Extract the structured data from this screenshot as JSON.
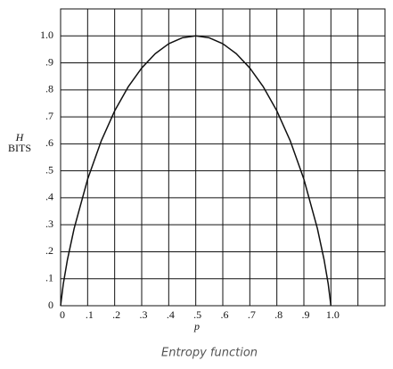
{
  "chart_data": {
    "type": "line",
    "y_label_symbol": "H",
    "y_label_unit": "BITS",
    "x_label": "p",
    "caption": "Entropy function",
    "x": [
      0,
      0.01,
      0.025,
      0.05,
      0.1,
      0.15,
      0.2,
      0.25,
      0.3,
      0.35,
      0.4,
      0.45,
      0.5,
      0.55,
      0.6,
      0.65,
      0.7,
      0.75,
      0.8,
      0.85,
      0.9,
      0.95,
      0.975,
      0.99,
      1
    ],
    "series": [
      {
        "color": "#111111",
        "values": [
          0,
          0.081,
          0.169,
          0.286,
          0.469,
          0.61,
          0.722,
          0.811,
          0.881,
          0.934,
          0.971,
          0.993,
          1,
          0.993,
          0.971,
          0.934,
          0.881,
          0.811,
          0.722,
          0.61,
          0.469,
          0.286,
          0.169,
          0.081,
          0
        ]
      }
    ],
    "xlim": [
      0,
      1.2
    ],
    "ylim": [
      0,
      1.1
    ],
    "xticks": [
      0,
      {
        "value": 0.1,
        "label": ".1"
      },
      {
        "value": 0.2,
        "label": ".2"
      },
      {
        "value": 0.3,
        "label": ".3"
      },
      {
        "value": 0.4,
        "label": ".4"
      },
      {
        "value": 0.5,
        "label": ".5"
      },
      {
        "value": 0.6,
        "label": ".6"
      },
      {
        "value": 0.7,
        "label": ".7"
      },
      {
        "value": 0.8,
        "label": ".8"
      },
      {
        "value": 0.9,
        "label": ".9"
      },
      {
        "value": 1,
        "label": "1.0"
      },
      {
        "value": 1.1
      }
    ],
    "yticks": [
      0,
      {
        "value": 0.1,
        "label": ".1"
      },
      {
        "value": 0.2,
        "label": ".2"
      },
      {
        "value": 0.3,
        "label": ".3"
      },
      {
        "value": 0.4,
        "label": ".4"
      },
      {
        "value": 0.5,
        "label": ".5"
      },
      {
        "value": 0.6,
        "label": ".6"
      },
      {
        "value": 0.7,
        "label": ".7"
      },
      {
        "value": 0.8,
        "label": ".8"
      },
      {
        "value": 0.9,
        "label": ".9"
      },
      {
        "value": 1,
        "label": "1.0"
      }
    ],
    "grid": true
  }
}
